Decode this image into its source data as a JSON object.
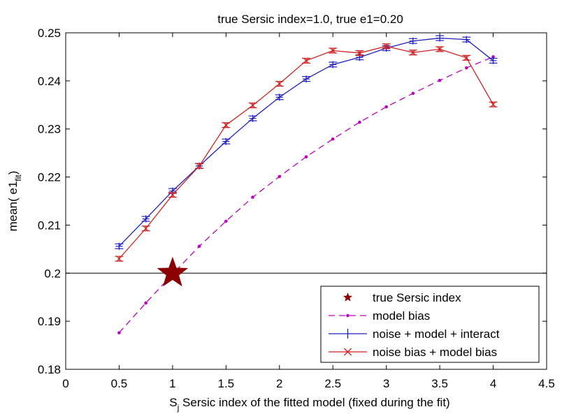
{
  "chart_data": {
    "type": "line",
    "title": "true Sersic index=1.0, true e1=0.20",
    "xlabel": {
      "main": "S",
      "sub": "j",
      "rest": " Sersic index of the fitted model (fixed during the fit)"
    },
    "ylabel": {
      "main": "mean( e1",
      "sub": "fit",
      "rest": ")"
    },
    "xlim": [
      0,
      4.5
    ],
    "ylim": [
      0.18,
      0.25
    ],
    "x_ticks": [
      0,
      0.5,
      1,
      1.5,
      2,
      2.5,
      3,
      3.5,
      4,
      4.5
    ],
    "x_tick_labels": [
      "0",
      "0.5",
      "1",
      "1.5",
      "2",
      "2.5",
      "3",
      "3.5",
      "4",
      "4.5"
    ],
    "y_ticks": [
      0.18,
      0.19,
      0.2,
      0.21,
      0.22,
      0.23,
      0.24,
      0.25
    ],
    "y_tick_labels": [
      "0.18",
      "0.19",
      "0.2",
      "0.21",
      "0.22",
      "0.23",
      "0.24",
      "0.25"
    ],
    "grid": false,
    "reference_line": {
      "y": 0.2,
      "color": "#000000"
    },
    "legend_position": "bottom-right",
    "star": {
      "name": "true Sersic index",
      "x": 1.0,
      "y": 0.2,
      "color": "#8b0000"
    },
    "series": [
      {
        "name": "model bias",
        "color": "#c000c0",
        "style": "dashed-dots",
        "x": [
          0.5,
          0.75,
          1.0,
          1.25,
          1.5,
          1.75,
          2.0,
          2.25,
          2.5,
          2.75,
          3.0,
          3.25,
          3.5,
          3.75,
          4.0
        ],
        "y": [
          0.1876,
          0.1938,
          0.1998,
          0.2056,
          0.2108,
          0.2158,
          0.2201,
          0.2242,
          0.2279,
          0.2314,
          0.2346,
          0.2374,
          0.2401,
          0.2427,
          0.245
        ]
      },
      {
        "name": "noise + model + interact",
        "color": "#2020c0",
        "marker": "plus",
        "x": [
          0.5,
          0.75,
          1.0,
          1.25,
          1.5,
          1.75,
          2.0,
          2.25,
          2.5,
          2.75,
          3.0,
          3.25,
          3.5,
          3.75,
          4.0
        ],
        "y": [
          0.2056,
          0.2113,
          0.2171,
          0.2223,
          0.2274,
          0.2322,
          0.2366,
          0.2404,
          0.2434,
          0.2449,
          0.2468,
          0.2483,
          0.2489,
          0.2486,
          0.2442
        ],
        "err": [
          0.0005,
          0.0005,
          0.0005,
          0.0005,
          0.0005,
          0.0005,
          0.0005,
          0.0005,
          0.0005,
          0.0005,
          0.0005,
          0.0005,
          0.0005,
          0.0005,
          0.0005
        ]
      },
      {
        "name": "noise bias  + model bias",
        "color": "#d02020",
        "marker": "x",
        "x": [
          0.5,
          0.75,
          1.0,
          1.25,
          1.5,
          1.75,
          2.0,
          2.25,
          2.5,
          2.75,
          3.0,
          3.25,
          3.5,
          3.75,
          4.0
        ],
        "y": [
          0.203,
          0.2093,
          0.2163,
          0.2223,
          0.2308,
          0.2349,
          0.2394,
          0.2442,
          0.2463,
          0.2458,
          0.2472,
          0.2459,
          0.2466,
          0.2448,
          0.2351
        ],
        "err": [
          0.0005,
          0.0005,
          0.0005,
          0.0005,
          0.0005,
          0.0005,
          0.0005,
          0.0005,
          0.0005,
          0.0005,
          0.0005,
          0.0005,
          0.0005,
          0.0005,
          0.0005
        ]
      }
    ]
  }
}
